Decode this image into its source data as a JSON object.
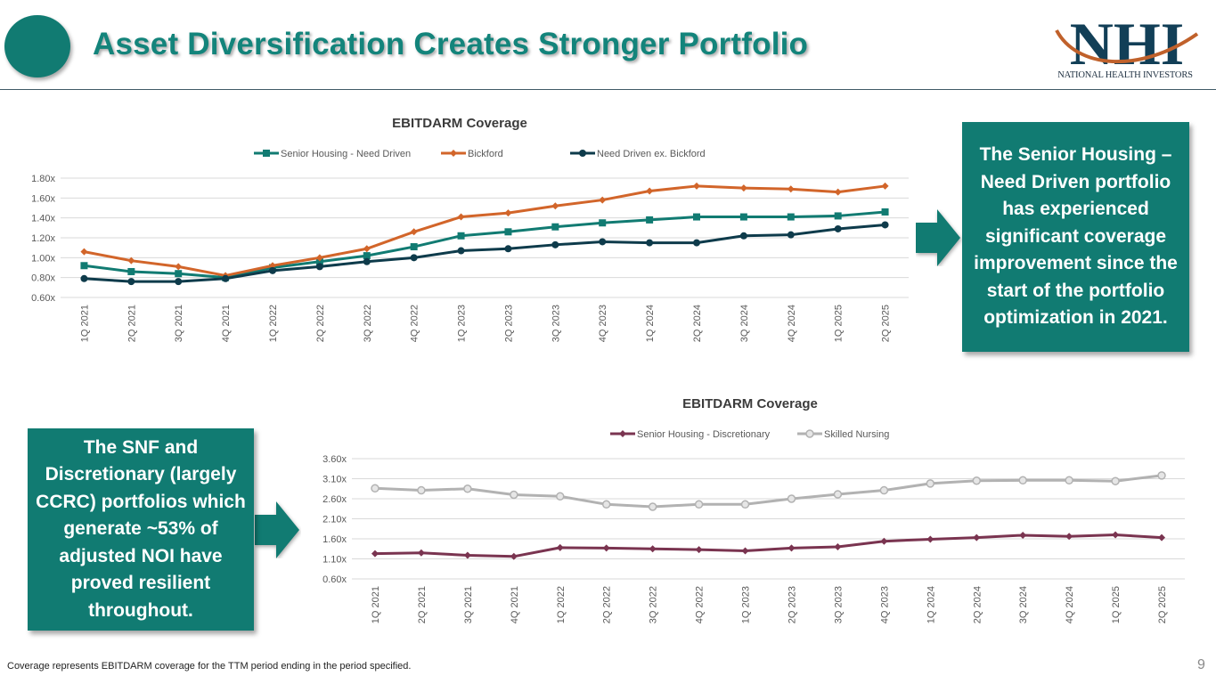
{
  "header": {
    "title": "Asset Diversification Creates Stronger Portfolio",
    "logo_text": "NHI",
    "logo_subtext": "NATIONAL HEALTH INVESTORS"
  },
  "colors": {
    "teal": "#117b72",
    "orange": "#d2652a",
    "navy": "#0e3b4b",
    "maroon": "#7a3450",
    "gray": "#b2b2b2"
  },
  "chart_data": [
    {
      "type": "line",
      "title": "EBITDARM Coverage",
      "categories": [
        "1Q 2021",
        "2Q 2021",
        "3Q 2021",
        "4Q 2021",
        "1Q 2022",
        "2Q 2022",
        "3Q 2022",
        "4Q 2022",
        "1Q 2023",
        "2Q 2023",
        "3Q 2023",
        "4Q 2023",
        "1Q 2024",
        "2Q 2024",
        "3Q 2024",
        "4Q 2024",
        "1Q 2025",
        "2Q 2025"
      ],
      "yticks": [
        "0.60x",
        "0.80x",
        "1.00x",
        "1.20x",
        "1.40x",
        "1.60x",
        "1.80x"
      ],
      "ylim": [
        0.6,
        1.8
      ],
      "gridlines": true,
      "legend_position": "top",
      "series": [
        {
          "name": "Senior Housing - Need Driven",
          "color": "#117b72",
          "marker": "square",
          "values": [
            0.92,
            0.86,
            0.84,
            0.8,
            0.9,
            0.96,
            1.02,
            1.11,
            1.22,
            1.26,
            1.31,
            1.35,
            1.38,
            1.41,
            1.41,
            1.41,
            1.42,
            1.46
          ]
        },
        {
          "name": "Bickford",
          "color": "#d2652a",
          "marker": "diamond",
          "values": [
            1.06,
            0.97,
            0.91,
            0.82,
            0.92,
            1.0,
            1.09,
            1.26,
            1.41,
            1.45,
            1.52,
            1.58,
            1.67,
            1.72,
            1.7,
            1.69,
            1.66,
            1.72
          ]
        },
        {
          "name": "Need Driven ex. Bickford",
          "color": "#0e3b4b",
          "marker": "circle",
          "values": [
            0.79,
            0.76,
            0.76,
            0.79,
            0.87,
            0.91,
            0.96,
            1.0,
            1.07,
            1.09,
            1.13,
            1.16,
            1.15,
            1.15,
            1.22,
            1.23,
            1.29,
            1.33
          ]
        }
      ]
    },
    {
      "type": "line",
      "title": "EBITDARM Coverage",
      "categories": [
        "1Q 2021",
        "2Q 2021",
        "3Q 2021",
        "4Q 2021",
        "1Q 2022",
        "2Q 2022",
        "3Q 2022",
        "4Q 2022",
        "1Q 2023",
        "2Q 2023",
        "3Q 2023",
        "4Q 2023",
        "1Q 2024",
        "2Q 2024",
        "3Q 2024",
        "4Q 2024",
        "1Q 2025",
        "2Q 2025"
      ],
      "yticks": [
        "0.60x",
        "1.10x",
        "1.60x",
        "2.10x",
        "2.60x",
        "3.10x",
        "3.60x"
      ],
      "ylim": [
        0.6,
        3.6
      ],
      "gridlines": true,
      "legend_position": "top",
      "series": [
        {
          "name": "Senior Housing - Discretionary",
          "color": "#7a3450",
          "marker": "diamond",
          "values": [
            1.23,
            1.25,
            1.19,
            1.16,
            1.38,
            1.37,
            1.35,
            1.33,
            1.3,
            1.37,
            1.4,
            1.54,
            1.59,
            1.63,
            1.69,
            1.66,
            1.7,
            1.63
          ]
        },
        {
          "name": "Skilled Nursing",
          "color": "#b2b2b2",
          "marker": "circle",
          "values": [
            2.86,
            2.81,
            2.85,
            2.7,
            2.66,
            2.46,
            2.4,
            2.46,
            2.46,
            2.6,
            2.71,
            2.81,
            2.98,
            3.05,
            3.06,
            3.06,
            3.04,
            3.18
          ]
        }
      ]
    }
  ],
  "callouts": {
    "right": "The Senior Housing – Need Driven portfolio has experienced significant coverage improvement since the start of the portfolio optimization in 2021.",
    "left": "The SNF and Discretionary (largely CCRC) portfolios which generate ~53% of adjusted NOI have proved resilient throughout."
  },
  "footer": {
    "note": "Coverage represents EBITDARM coverage for the TTM period ending in the period specified.",
    "page_number": "9"
  }
}
